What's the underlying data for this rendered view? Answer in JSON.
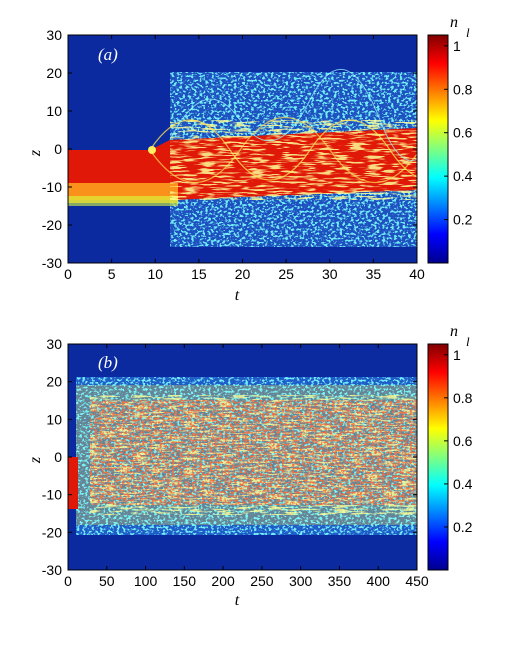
{
  "chart_data": [
    {
      "type": "heatmap",
      "panel_label": "(a)",
      "xlabel": "t",
      "ylabel": "z",
      "colorbar_label": "n",
      "colorbar_label_sub": "l",
      "xlim": [
        0,
        40
      ],
      "ylim": [
        -30,
        30
      ],
      "x_ticks": [
        "0",
        "5",
        "10",
        "15",
        "20",
        "25",
        "30",
        "35",
        "40"
      ],
      "y_ticks": [
        "30",
        "20",
        "10",
        "0",
        "-10",
        "-20",
        "-30"
      ],
      "colorbar_range": [
        0,
        1.05
      ],
      "colorbar_ticks": [
        "0.2",
        "0.4",
        "0.6",
        "0.8",
        "1"
      ],
      "colormap": "jet",
      "features": {
        "initial_bulk_z": [
          -15,
          0
        ],
        "bulk_center_z": -7,
        "transition_t": 10,
        "spread_z": [
          -19,
          20
        ]
      }
    },
    {
      "type": "heatmap",
      "panel_label": "(b)",
      "xlabel": "t",
      "ylabel": "z",
      "colorbar_label": "n",
      "colorbar_label_sub": "l",
      "xlim": [
        0,
        450
      ],
      "ylim": [
        -30,
        30
      ],
      "x_ticks": [
        "0",
        "50",
        "100",
        "150",
        "200",
        "250",
        "300",
        "350",
        "400",
        "450"
      ],
      "y_ticks": [
        "30",
        "20",
        "10",
        "0",
        "-10",
        "-20",
        "-30"
      ],
      "colorbar_range": [
        0,
        1.05
      ],
      "colorbar_ticks": [
        "0.2",
        "0.4",
        "0.6",
        "0.8",
        "1"
      ],
      "colormap": "jet",
      "features": {
        "initial_bulk_z": [
          -15,
          0
        ],
        "spread_z": [
          -19,
          20
        ]
      }
    }
  ],
  "colors": {
    "background": "#0a2a9a",
    "axis": "#000000"
  }
}
